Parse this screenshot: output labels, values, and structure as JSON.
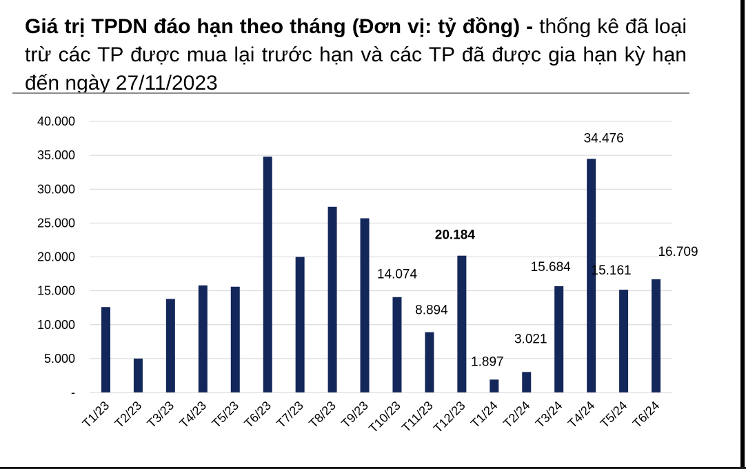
{
  "header": {
    "title_bold": "Giá trị TPDN đáo hạn theo tháng (Đơn vị: tỷ đồng) -",
    "title_rest": "thống kê đã loại trừ các TP được mua lại trước hạn và các TP đã được gia hạn kỳ hạn đến ngày 27/11/2023"
  },
  "chart_data": {
    "type": "bar",
    "title": "Giá trị TPDN đáo hạn theo tháng (Đơn vị: tỷ đồng) - thống kê đã loại trừ các TP được mua lại trước hạn và các TP đã được gia hạn kỳ hạn đến ngày 27/11/2023",
    "xlabel": "",
    "ylabel": "",
    "categories": [
      "T1/23",
      "T2/23",
      "T3/23",
      "T4/23",
      "T5/23",
      "T6/23",
      "T7/23",
      "T8/23",
      "T9/23",
      "T10/23",
      "T11/23",
      "T12/23",
      "T1/24",
      "T2/24",
      "T3/24",
      "T4/24",
      "T5/24",
      "T6/24"
    ],
    "values": [
      12600,
      5000,
      13800,
      15800,
      15600,
      34800,
      20000,
      27400,
      25700,
      14074,
      8894,
      20184,
      1897,
      3021,
      15684,
      34476,
      15161,
      16709
    ],
    "data_labels": [
      "",
      "",
      "",
      "",
      "",
      "",
      "",
      "",
      "",
      "14.074",
      "8.894",
      "20.184",
      "1.897",
      "3.021",
      "15.684",
      "34.476",
      "15.161",
      "16.709"
    ],
    "bold_labels": [
      "20.184"
    ],
    "ylim": [
      0,
      40000
    ],
    "yticks": [
      {
        "value": 0,
        "label": "-"
      },
      {
        "value": 5000,
        "label": "5.000"
      },
      {
        "value": 10000,
        "label": "10.000"
      },
      {
        "value": 15000,
        "label": "15.000"
      },
      {
        "value": 20000,
        "label": "20.000"
      },
      {
        "value": 25000,
        "label": "25.000"
      },
      {
        "value": 30000,
        "label": "30.000"
      },
      {
        "value": 35000,
        "label": "35.000"
      },
      {
        "value": 40000,
        "label": "40.000"
      }
    ],
    "grid": true,
    "legend": "none",
    "bar_color": "#14275a",
    "grid_color": "#d4d4d4"
  }
}
